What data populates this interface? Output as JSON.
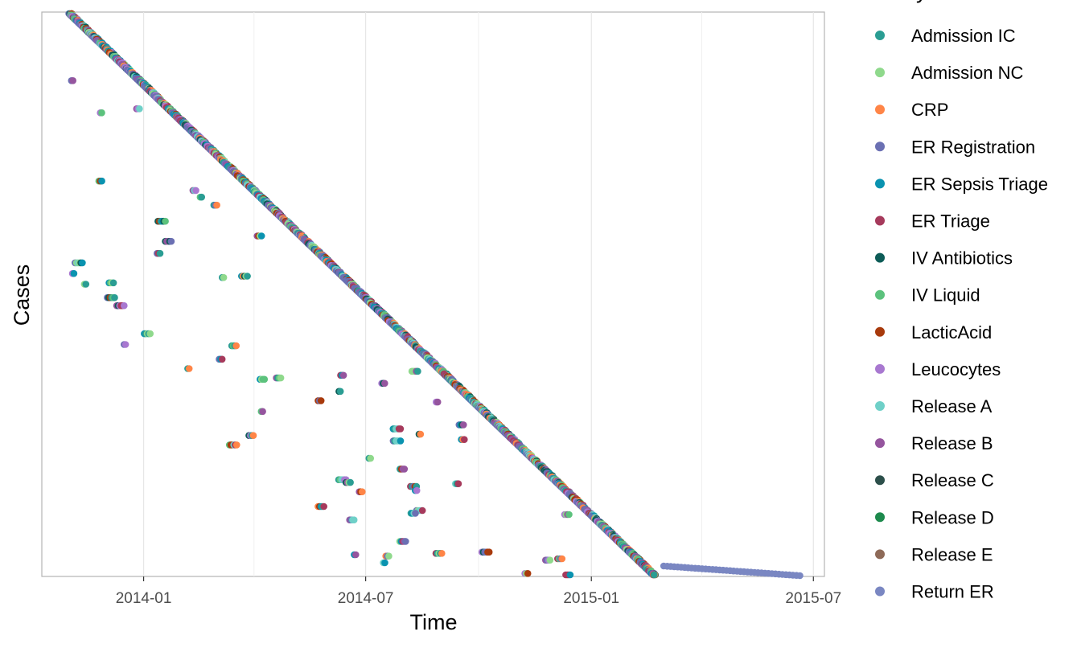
{
  "chart_data": {
    "type": "scatter",
    "title": "",
    "xlabel": "Time",
    "ylabel": "Cases",
    "x_ticks": [
      "2014-01",
      "2014-07",
      "2015-01",
      "2015-07"
    ],
    "xlim": [
      "2013-10-10",
      "2015-07-10"
    ],
    "y_axis_has_tick_labels": false,
    "grid": "vertical",
    "legend": {
      "title": "activity",
      "placement": "right",
      "entries": [
        {
          "name": "Admission IC",
          "color": "#2a9d93"
        },
        {
          "name": "Admission NC",
          "color": "#8fd98c"
        },
        {
          "name": "CRP",
          "color": "#ff8547"
        },
        {
          "name": "ER Registration",
          "color": "#6b70b3"
        },
        {
          "name": "ER Sepsis Triage",
          "color": "#0a93b0"
        },
        {
          "name": "ER Triage",
          "color": "#a63a5c"
        },
        {
          "name": "IV Antibiotics",
          "color": "#0d5c57"
        },
        {
          "name": "IV Liquid",
          "color": "#5cc27d"
        },
        {
          "name": "LacticAcid",
          "color": "#a83a0c"
        },
        {
          "name": "Leucocytes",
          "color": "#a878d0"
        },
        {
          "name": "Release A",
          "color": "#6fd0c8"
        },
        {
          "name": "Release B",
          "color": "#95559e"
        },
        {
          "name": "Release C",
          "color": "#2c4f4a"
        },
        {
          "name": "Release D",
          "color": "#1d8a4d"
        },
        {
          "name": "Release E",
          "color": "#8e6a58"
        },
        {
          "name": "Return ER",
          "color": "#7a87c2"
        }
      ]
    },
    "case_start_range": [
      "2013-11-01",
      "2015-02-20"
    ],
    "return_er_tail_range": [
      "2015-03-01",
      "2015-06-20"
    ]
  }
}
